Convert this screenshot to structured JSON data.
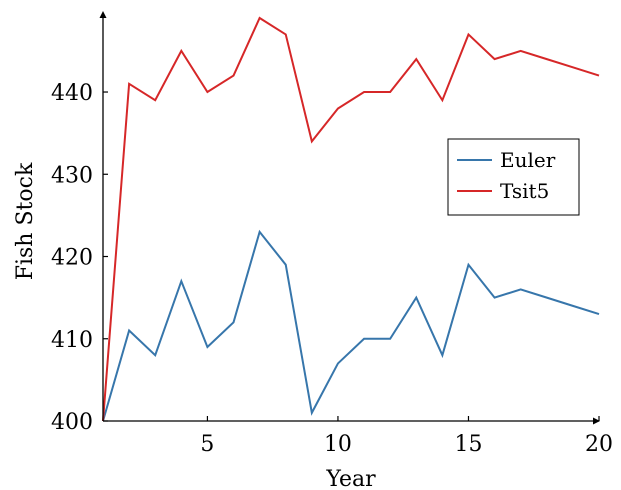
{
  "chart_data": {
    "type": "line",
    "xlabel": "Year",
    "ylabel": "Fish Stock",
    "xlim": [
      1,
      20
    ],
    "ylim": [
      400,
      449
    ],
    "x_ticks": [
      5,
      10,
      15,
      20
    ],
    "y_ticks": [
      400,
      410,
      420,
      430,
      440
    ],
    "legend_position": "center-right",
    "grid": false,
    "x": [
      1,
      2,
      3,
      4,
      5,
      6,
      7,
      8,
      9,
      10,
      11,
      12,
      13,
      14,
      15,
      16,
      17,
      18,
      19,
      20
    ],
    "series": [
      {
        "name": "Euler",
        "color": "#3776ab",
        "values": [
          400,
          411,
          408,
          417,
          409,
          412,
          423,
          419,
          401,
          407,
          410,
          410,
          415,
          408,
          419,
          415,
          416,
          415,
          414,
          413
        ]
      },
      {
        "name": "Tsit5",
        "color": "#d62728",
        "values": [
          400,
          441,
          439,
          445,
          440,
          442,
          449,
          447,
          434,
          438,
          440,
          440,
          444,
          439,
          447,
          444,
          445,
          444,
          443,
          442
        ]
      }
    ]
  }
}
